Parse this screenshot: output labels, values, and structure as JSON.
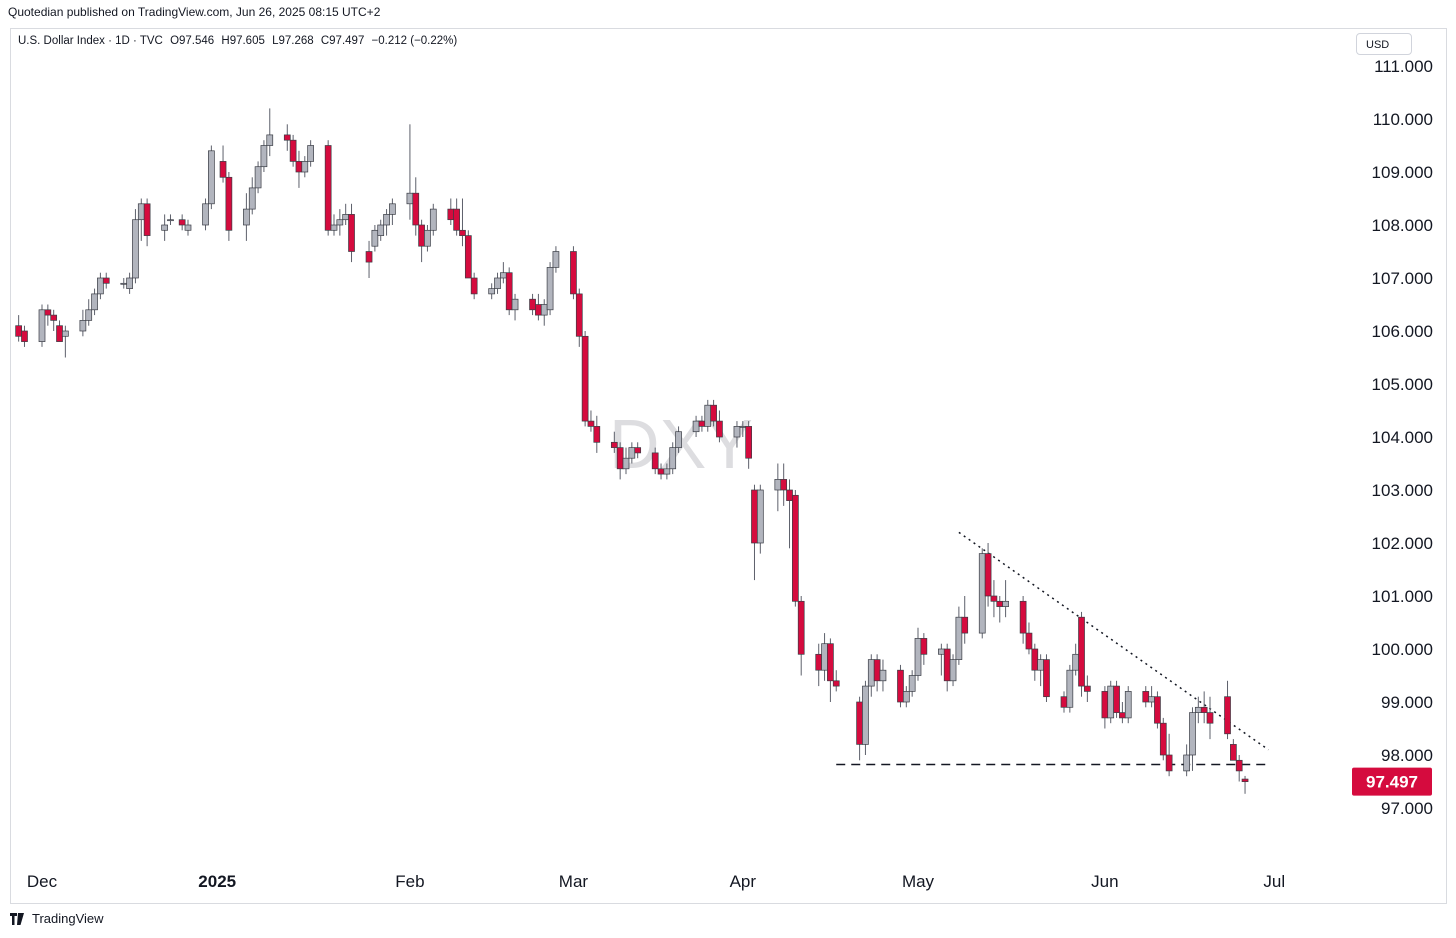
{
  "header": {
    "publisher_text": "Quotedian published on TradingView.com, Jun 26, 2025 08:15 UTC+2"
  },
  "legend": {
    "symbol": "U.S. Dollar Index · 1D · TVC",
    "open": "O97.546",
    "high": "H97.605",
    "low": "L97.268",
    "close": "C97.497",
    "change": "−0.212 (−0.22%)"
  },
  "currency_button": "USD",
  "watermark": "DXY",
  "footer": {
    "brand": "TradingView"
  },
  "colors": {
    "up": "#b2b5be",
    "down": "#d50b3e",
    "wick": "#5d606b",
    "last_price": "#d50b3e"
  },
  "chart_data": {
    "type": "candlestick",
    "title": "U.S. Dollar Index · 1D · TVC",
    "ylabel": "",
    "xlabel": "",
    "ylim": [
      96.0,
      111.8
    ],
    "y_ticks": [
      "111.000",
      "110.000",
      "109.000",
      "108.000",
      "107.000",
      "106.000",
      "105.000",
      "104.000",
      "103.000",
      "102.000",
      "101.000",
      "100.000",
      "99.000",
      "98.000",
      "97.000"
    ],
    "x_ticks": [
      {
        "label": "Dec",
        "date": "2024-12-02"
      },
      {
        "label": "2025",
        "date": "2025-01-01"
      },
      {
        "label": "Feb",
        "date": "2025-02-03"
      },
      {
        "label": "Mar",
        "date": "2025-03-03"
      },
      {
        "label": "Apr",
        "date": "2025-04-01"
      },
      {
        "label": "May",
        "date": "2025-05-01"
      },
      {
        "label": "Jun",
        "date": "2025-06-02"
      },
      {
        "label": "Jul",
        "date": "2025-07-01"
      }
    ],
    "last_price": "97.497",
    "candles": [
      [
        "2024-11-28",
        106.1,
        106.3,
        105.8,
        105.9
      ],
      [
        "2024-11-29",
        106.0,
        106.1,
        105.7,
        105.8
      ],
      [
        "2024-12-02",
        105.8,
        106.5,
        105.7,
        106.4
      ],
      [
        "2024-12-03",
        106.4,
        106.5,
        106.1,
        106.3
      ],
      [
        "2024-12-04",
        106.3,
        106.4,
        106.0,
        106.2
      ],
      [
        "2024-12-05",
        106.1,
        106.2,
        105.8,
        105.8
      ],
      [
        "2024-12-06",
        105.9,
        106.1,
        105.5,
        106.0
      ],
      [
        "2024-12-09",
        106.0,
        106.4,
        105.9,
        106.2
      ],
      [
        "2024-12-10",
        106.2,
        106.6,
        106.1,
        106.4
      ],
      [
        "2024-12-11",
        106.4,
        106.8,
        106.3,
        106.7
      ],
      [
        "2024-12-12",
        106.7,
        107.1,
        106.6,
        107.0
      ],
      [
        "2024-12-13",
        107.0,
        107.1,
        106.8,
        106.9
      ],
      [
        "2024-12-16",
        106.9,
        107.0,
        106.8,
        106.9
      ],
      [
        "2024-12-17",
        106.8,
        107.1,
        106.7,
        107.0
      ],
      [
        "2024-12-18",
        107.0,
        108.3,
        106.9,
        108.1
      ],
      [
        "2024-12-19",
        108.1,
        108.5,
        107.7,
        108.4
      ],
      [
        "2024-12-20",
        108.4,
        108.5,
        107.6,
        107.8
      ],
      [
        "2024-12-23",
        107.9,
        108.2,
        107.7,
        108.0
      ],
      [
        "2024-12-24",
        108.1,
        108.2,
        108.0,
        108.1
      ],
      [
        "2024-12-26",
        108.1,
        108.2,
        107.9,
        108.0
      ],
      [
        "2024-12-27",
        107.9,
        108.1,
        107.8,
        108.0
      ],
      [
        "2024-12-30",
        108.0,
        108.5,
        107.9,
        108.4
      ],
      [
        "2024-12-31",
        108.4,
        109.5,
        108.3,
        109.4
      ],
      [
        "2025-01-02",
        109.2,
        109.5,
        108.8,
        108.9
      ],
      [
        "2025-01-03",
        108.9,
        109.0,
        107.7,
        107.9
      ],
      [
        "2025-01-06",
        108.0,
        108.6,
        107.7,
        108.3
      ],
      [
        "2025-01-07",
        108.3,
        108.9,
        108.2,
        108.7
      ],
      [
        "2025-01-08",
        108.7,
        109.2,
        108.6,
        109.1
      ],
      [
        "2025-01-09",
        109.1,
        109.6,
        109.0,
        109.5
      ],
      [
        "2025-01-10",
        109.5,
        110.2,
        109.3,
        109.7
      ],
      [
        "2025-01-13",
        109.7,
        109.9,
        109.4,
        109.6
      ],
      [
        "2025-01-14",
        109.6,
        109.7,
        109.1,
        109.2
      ],
      [
        "2025-01-15",
        109.2,
        109.4,
        108.7,
        109.0
      ],
      [
        "2025-01-16",
        109.0,
        109.3,
        108.9,
        109.2
      ],
      [
        "2025-01-17",
        109.2,
        109.6,
        109.1,
        109.5
      ],
      [
        "2025-01-20",
        109.5,
        109.6,
        107.8,
        107.9
      ],
      [
        "2025-01-21",
        107.9,
        108.2,
        107.8,
        108.0
      ],
      [
        "2025-01-22",
        108.0,
        108.3,
        107.8,
        108.1
      ],
      [
        "2025-01-23",
        108.1,
        108.4,
        108.0,
        108.2
      ],
      [
        "2025-01-24",
        108.2,
        108.4,
        107.3,
        107.5
      ],
      [
        "2025-01-27",
        107.5,
        107.7,
        107.0,
        107.3
      ],
      [
        "2025-01-28",
        107.6,
        108.0,
        107.5,
        107.9
      ],
      [
        "2025-01-29",
        107.8,
        108.1,
        107.7,
        108.0
      ],
      [
        "2025-01-30",
        108.0,
        108.3,
        107.8,
        108.2
      ],
      [
        "2025-01-31",
        108.2,
        108.5,
        108.0,
        108.4
      ],
      [
        "2025-02-03",
        108.4,
        109.9,
        108.1,
        108.6
      ],
      [
        "2025-02-04",
        108.6,
        108.9,
        107.8,
        108.0
      ],
      [
        "2025-02-05",
        108.0,
        108.1,
        107.3,
        107.6
      ],
      [
        "2025-02-06",
        107.6,
        108.0,
        107.5,
        107.9
      ],
      [
        "2025-02-07",
        107.9,
        108.4,
        107.8,
        108.3
      ],
      [
        "2025-02-10",
        108.3,
        108.5,
        108.0,
        108.1
      ],
      [
        "2025-02-11",
        108.3,
        108.5,
        107.8,
        107.9
      ],
      [
        "2025-02-12",
        107.9,
        108.5,
        107.6,
        107.8
      ],
      [
        "2025-02-13",
        107.8,
        107.9,
        107.0,
        107.0
      ],
      [
        "2025-02-14",
        107.0,
        107.1,
        106.6,
        106.7
      ],
      [
        "2025-02-17",
        106.7,
        106.9,
        106.6,
        106.8
      ],
      [
        "2025-02-18",
        106.8,
        107.1,
        106.7,
        107.0
      ],
      [
        "2025-02-19",
        107.0,
        107.3,
        106.9,
        107.1
      ],
      [
        "2025-02-20",
        107.1,
        107.2,
        106.3,
        106.4
      ],
      [
        "2025-02-21",
        106.4,
        106.7,
        106.2,
        106.6
      ],
      [
        "2025-02-24",
        106.6,
        106.7,
        106.3,
        106.4
      ],
      [
        "2025-02-25",
        106.5,
        106.7,
        106.2,
        106.3
      ],
      [
        "2025-02-26",
        106.3,
        106.6,
        106.1,
        106.5
      ],
      [
        "2025-02-27",
        106.4,
        107.3,
        106.3,
        107.2
      ],
      [
        "2025-02-28",
        107.2,
        107.6,
        107.1,
        107.5
      ],
      [
        "2025-03-03",
        107.5,
        107.6,
        106.6,
        106.7
      ],
      [
        "2025-03-04",
        106.7,
        106.8,
        105.7,
        105.9
      ],
      [
        "2025-03-05",
        105.9,
        106.0,
        104.2,
        104.3
      ],
      [
        "2025-03-06",
        104.3,
        104.5,
        104.1,
        104.2
      ],
      [
        "2025-03-07",
        104.2,
        104.4,
        103.7,
        103.9
      ],
      [
        "2025-03-10",
        103.9,
        104.1,
        103.7,
        103.8
      ],
      [
        "2025-03-11",
        103.8,
        103.9,
        103.2,
        103.4
      ],
      [
        "2025-03-12",
        103.4,
        103.8,
        103.3,
        103.6
      ],
      [
        "2025-03-13",
        103.6,
        103.9,
        103.5,
        103.8
      ],
      [
        "2025-03-14",
        103.8,
        103.9,
        103.6,
        103.7
      ],
      [
        "2025-03-17",
        103.7,
        103.8,
        103.3,
        103.4
      ],
      [
        "2025-03-18",
        103.4,
        103.5,
        103.2,
        103.3
      ],
      [
        "2025-03-19",
        103.3,
        103.5,
        103.2,
        103.4
      ],
      [
        "2025-03-20",
        103.4,
        103.9,
        103.3,
        103.8
      ],
      [
        "2025-03-21",
        103.8,
        104.2,
        103.7,
        104.1
      ],
      [
        "2025-03-24",
        104.1,
        104.4,
        104.0,
        104.3
      ],
      [
        "2025-03-25",
        104.3,
        104.4,
        104.1,
        104.2
      ],
      [
        "2025-03-26",
        104.2,
        104.7,
        104.1,
        104.6
      ],
      [
        "2025-03-27",
        104.6,
        104.7,
        104.2,
        104.3
      ],
      [
        "2025-03-28",
        104.3,
        104.5,
        103.9,
        104.0
      ],
      [
        "2025-03-31",
        104.0,
        104.3,
        103.8,
        104.2
      ],
      [
        "2025-04-01",
        104.2,
        104.3,
        104.0,
        104.2
      ],
      [
        "2025-04-02",
        104.2,
        104.3,
        103.4,
        103.6
      ],
      [
        "2025-04-03",
        103.0,
        103.1,
        101.3,
        102.0
      ],
      [
        "2025-04-04",
        102.0,
        103.1,
        101.8,
        103.0
      ],
      [
        "2025-04-07",
        103.0,
        103.5,
        102.6,
        103.2
      ],
      [
        "2025-04-08",
        103.2,
        103.5,
        102.7,
        103.0
      ],
      [
        "2025-04-09",
        103.0,
        103.2,
        101.9,
        102.8
      ],
      [
        "2025-04-10",
        102.9,
        103.0,
        100.8,
        100.9
      ],
      [
        "2025-04-11",
        100.9,
        101.0,
        99.5,
        99.9
      ],
      [
        "2025-04-14",
        99.9,
        100.1,
        99.3,
        99.6
      ],
      [
        "2025-04-15",
        99.6,
        100.3,
        99.4,
        100.1
      ],
      [
        "2025-04-16",
        100.1,
        100.2,
        99.0,
        99.4
      ],
      [
        "2025-04-17",
        99.4,
        99.6,
        99.2,
        99.3
      ],
      [
        "2025-04-21",
        99.0,
        99.1,
        97.9,
        98.2
      ],
      [
        "2025-04-22",
        98.2,
        99.4,
        98.0,
        99.3
      ],
      [
        "2025-04-23",
        99.3,
        99.9,
        99.1,
        99.8
      ],
      [
        "2025-04-24",
        99.8,
        99.9,
        99.2,
        99.4
      ],
      [
        "2025-04-25",
        99.4,
        99.8,
        99.2,
        99.6
      ],
      [
        "2025-04-28",
        99.6,
        99.7,
        98.9,
        99.0
      ],
      [
        "2025-04-29",
        99.0,
        99.3,
        98.9,
        99.2
      ],
      [
        "2025-04-30",
        99.2,
        99.6,
        99.1,
        99.5
      ],
      [
        "2025-05-01",
        99.5,
        100.4,
        99.4,
        100.2
      ],
      [
        "2025-05-02",
        100.2,
        100.3,
        99.7,
        99.9
      ],
      [
        "2025-05-05",
        99.9,
        100.1,
        99.5,
        100.0
      ],
      [
        "2025-05-06",
        100.0,
        100.1,
        99.2,
        99.4
      ],
      [
        "2025-05-07",
        99.4,
        99.9,
        99.3,
        99.8
      ],
      [
        "2025-05-08",
        99.8,
        100.8,
        99.7,
        100.6
      ],
      [
        "2025-05-09",
        100.6,
        101.0,
        100.1,
        100.3
      ],
      [
        "2025-05-12",
        100.3,
        101.9,
        100.2,
        101.8
      ],
      [
        "2025-05-13",
        101.8,
        102.0,
        100.8,
        101.0
      ],
      [
        "2025-05-14",
        101.0,
        101.3,
        100.6,
        100.9
      ],
      [
        "2025-05-15",
        100.9,
        101.0,
        100.5,
        100.8
      ],
      [
        "2025-05-16",
        100.8,
        101.3,
        100.6,
        100.9
      ],
      [
        "2025-05-19",
        100.9,
        101.0,
        100.1,
        100.3
      ],
      [
        "2025-05-20",
        100.3,
        100.5,
        99.9,
        100.0
      ],
      [
        "2025-05-21",
        100.0,
        100.1,
        99.4,
        99.6
      ],
      [
        "2025-05-22",
        99.6,
        99.9,
        99.3,
        99.8
      ],
      [
        "2025-05-23",
        99.8,
        99.9,
        99.0,
        99.1
      ],
      [
        "2025-05-26",
        99.1,
        99.2,
        98.8,
        98.9
      ],
      [
        "2025-05-27",
        98.9,
        99.7,
        98.8,
        99.6
      ],
      [
        "2025-05-28",
        99.6,
        100.1,
        99.5,
        99.9
      ],
      [
        "2025-05-29",
        100.6,
        100.7,
        99.1,
        99.3
      ],
      [
        "2025-05-30",
        99.3,
        99.5,
        99.0,
        99.2
      ],
      [
        "2025-06-02",
        99.2,
        99.3,
        98.5,
        98.7
      ],
      [
        "2025-06-03",
        98.7,
        99.4,
        98.6,
        99.3
      ],
      [
        "2025-06-04",
        99.3,
        99.4,
        98.7,
        98.8
      ],
      [
        "2025-06-05",
        98.8,
        99.0,
        98.6,
        98.7
      ],
      [
        "2025-06-06",
        98.7,
        99.3,
        98.6,
        99.2
      ],
      [
        "2025-06-09",
        99.2,
        99.3,
        98.9,
        99.0
      ],
      [
        "2025-06-10",
        99.0,
        99.3,
        98.9,
        99.1
      ],
      [
        "2025-06-11",
        99.1,
        99.2,
        98.5,
        98.6
      ],
      [
        "2025-06-12",
        98.6,
        98.7,
        97.9,
        98.0
      ],
      [
        "2025-06-13",
        98.0,
        98.4,
        97.6,
        97.7
      ],
      [
        "2025-06-16",
        97.7,
        98.2,
        97.6,
        98.0
      ],
      [
        "2025-06-17",
        98.0,
        98.9,
        97.7,
        98.8
      ],
      [
        "2025-06-18",
        98.8,
        99.1,
        98.6,
        98.9
      ],
      [
        "2025-06-19",
        98.9,
        99.2,
        98.6,
        98.8
      ],
      [
        "2025-06-20",
        98.8,
        99.1,
        98.3,
        98.6
      ],
      [
        "2025-06-23",
        99.1,
        99.4,
        98.3,
        98.4
      ],
      [
        "2025-06-24",
        98.2,
        98.3,
        97.9,
        97.9
      ],
      [
        "2025-06-25",
        97.9,
        98.0,
        97.5,
        97.7
      ],
      [
        "2025-06-26",
        97.546,
        97.605,
        97.268,
        97.497
      ]
    ],
    "drawings": [
      {
        "type": "dotted-trendline",
        "from": [
          "2025-05-08",
          102.2
        ],
        "to": [
          "2025-06-30",
          98.1
        ]
      },
      {
        "type": "dashed-horizontal",
        "from": [
          "2025-04-17",
          97.82
        ],
        "to": [
          "2025-06-30",
          97.82
        ]
      }
    ]
  }
}
